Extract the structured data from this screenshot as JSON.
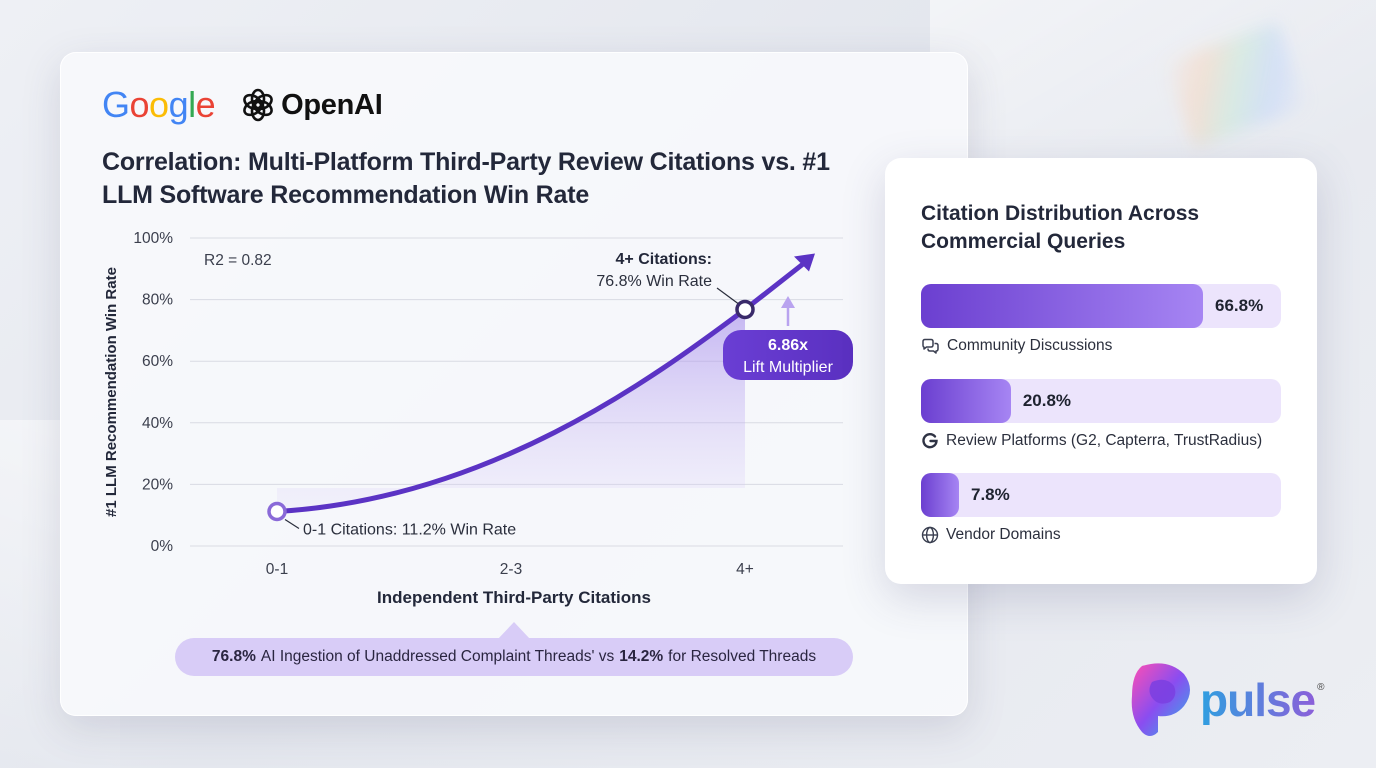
{
  "logos": {
    "google_text": "Google",
    "openai_text": "OpenAI",
    "pulse_text": "pulse",
    "registered_mark": "®"
  },
  "main": {
    "title": "Correlation: Multi-Platform Third-Party Review Citations vs. #1 LLM Software Recommendation Win Rate",
    "banner": {
      "pct_a": "76.8%",
      "text_a": "AI Ingestion of Unaddressed Complaint Threads' vs",
      "pct_b": "14.2%",
      "text_b": "for Resolved Threads"
    }
  },
  "chart_data": {
    "type": "line",
    "xlabel": "Independent Third-Party Citations",
    "ylabel": "#1 LLM Recommendation Win Rate",
    "categories": [
      "0-1",
      "2-3",
      "4+"
    ],
    "y_ticks": [
      "0%",
      "20%",
      "40%",
      "60%",
      "80%",
      "100%"
    ],
    "ylim": [
      0,
      100
    ],
    "grid": true,
    "points": [
      {
        "x": "0-1",
        "y": 11.2
      },
      {
        "x": "4+",
        "y": 76.8
      }
    ],
    "r2_label": "R2 = 0.82",
    "annotations": {
      "low_label": "0-1 Citations: 11.2% Win Rate",
      "high_label_line1": "4+ Citations:",
      "high_label_line2": "76.8% Win Rate",
      "lift_value": "6.86x",
      "lift_label": "Lift Multiplier"
    },
    "colors": {
      "line": "#5b33c4",
      "fill": "#b9a3ef",
      "badge": "#5f34c9"
    }
  },
  "side": {
    "title": "Citation Distribution Across Commercial Queries",
    "items": [
      {
        "pct": 66.8,
        "pct_label": "66.8%",
        "label": "Community Discussions",
        "icon": "chat-bubbles-icon"
      },
      {
        "pct": 20.8,
        "pct_label": "20.8%",
        "label": "Review Platforms (G2, Capterra, TrustRadius)",
        "icon": "g2-icon"
      },
      {
        "pct": 7.8,
        "pct_label": "7.8%",
        "label": "Vendor Domains",
        "icon": "globe-icon"
      }
    ]
  }
}
